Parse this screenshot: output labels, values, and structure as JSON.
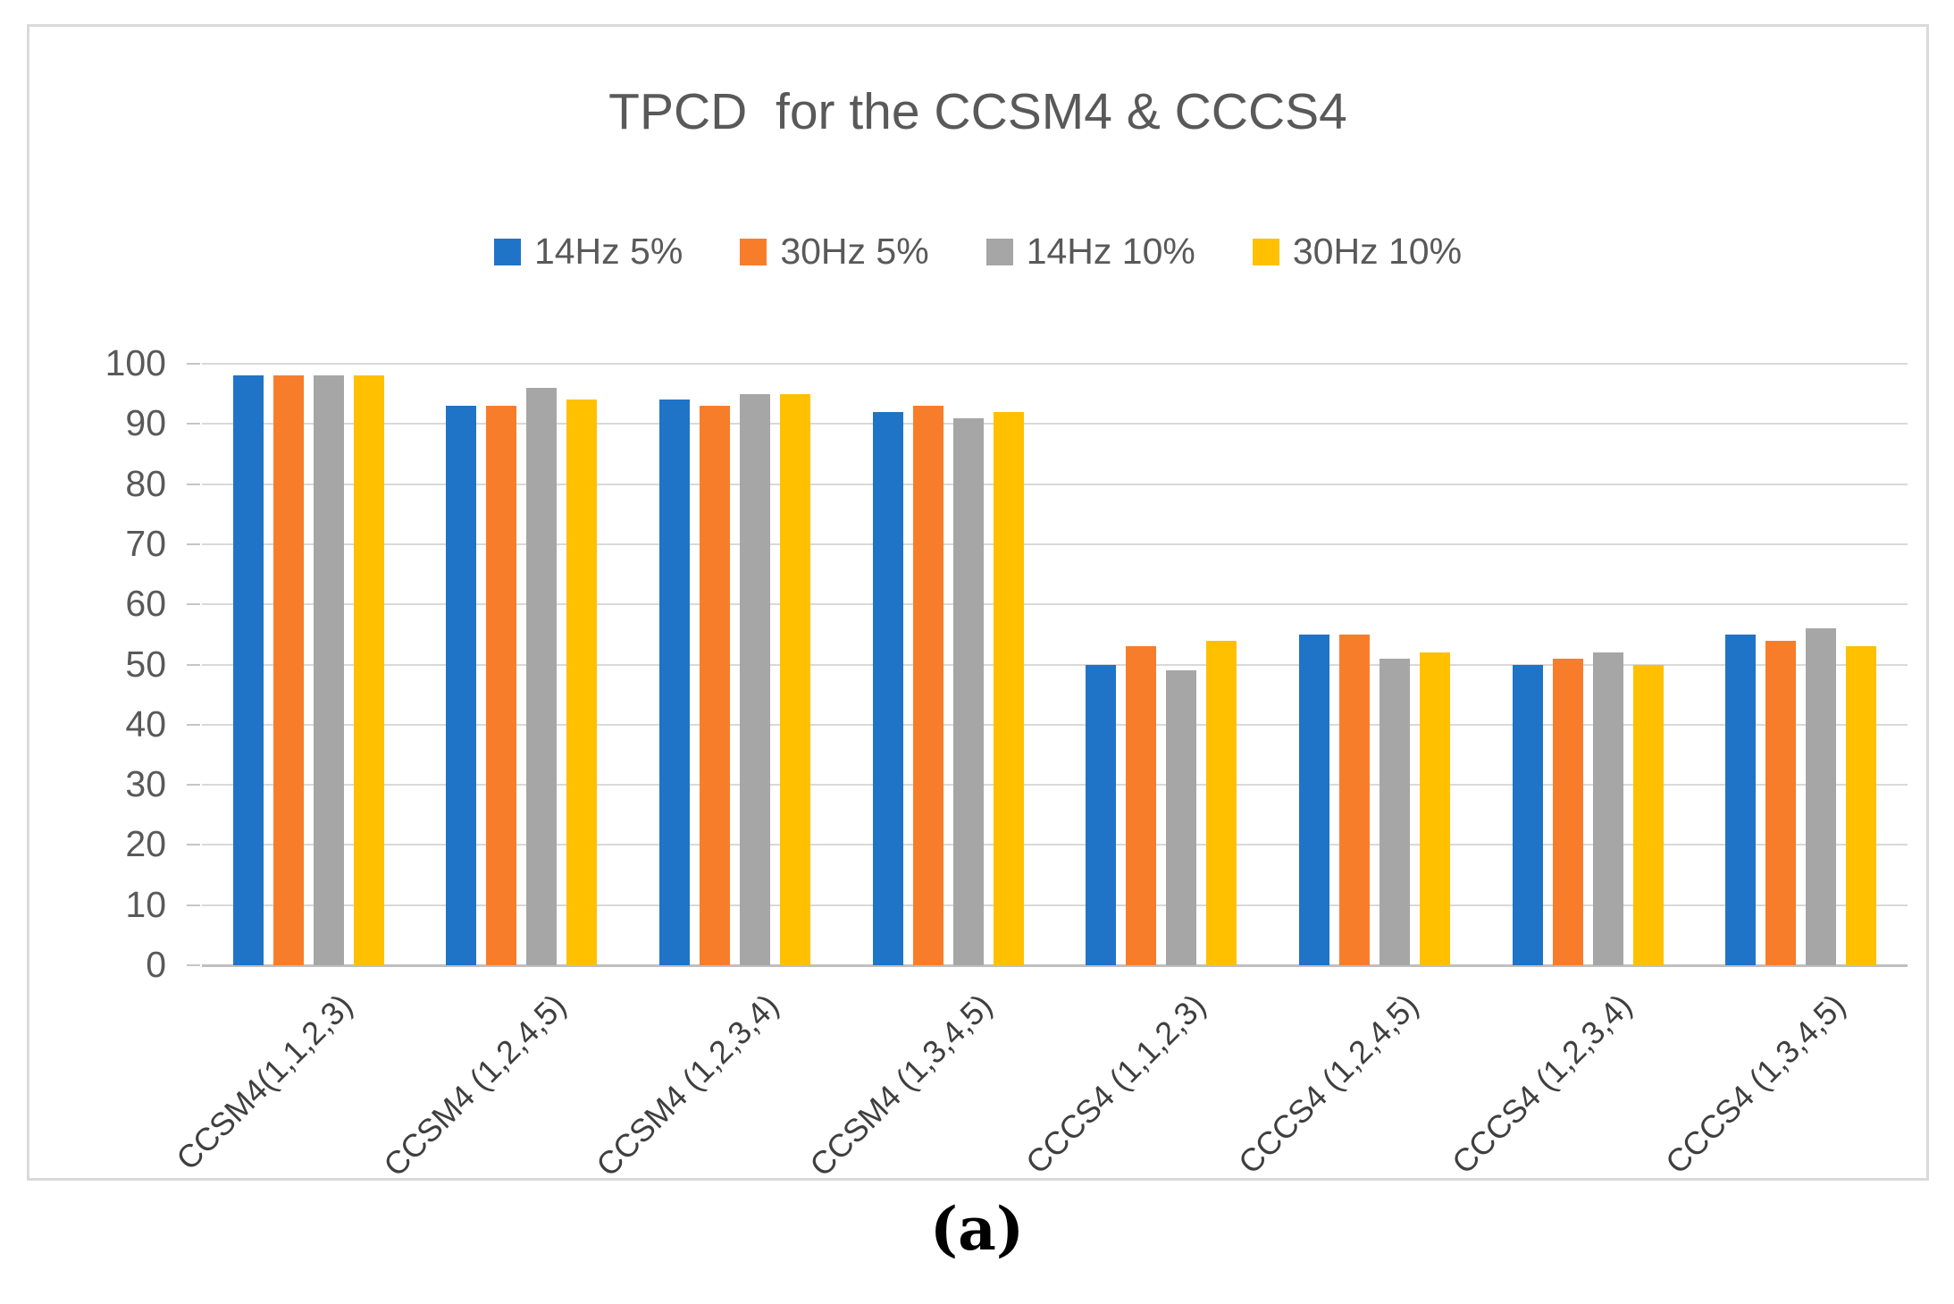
{
  "figure": {
    "title": "TPCD  for the CCSM4 & CCCS4",
    "caption": "(a)"
  },
  "chart_data": {
    "type": "bar",
    "title": "TPCD  for the CCSM4 & CCCS4",
    "categories": [
      "CCSM4(1,1,2,3)",
      "CCSM4 (1,2,4,5)",
      "CCSM4 (1,2,3,4)",
      "CCSM4 (1,3,4,5)",
      "CCCS4  (1,1,2,3)",
      "CCCS4 (1,2,4,5)",
      "CCCS4 (1,2,3,4)",
      "CCCS4 (1,3,4,5)"
    ],
    "series": [
      {
        "name": "14Hz 5%",
        "color": "#2074C7",
        "values": [
          98,
          93,
          94,
          92,
          50,
          55,
          50,
          55
        ]
      },
      {
        "name": "30Hz 5%",
        "color": "#F87D2B",
        "values": [
          98,
          93,
          93,
          93,
          53,
          55,
          51,
          54
        ]
      },
      {
        "name": "14Hz 10%",
        "color": "#A6A6A6",
        "values": [
          98,
          96,
          95,
          91,
          49,
          51,
          52,
          56
        ]
      },
      {
        "name": "30Hz 10%",
        "color": "#FFC000",
        "values": [
          98,
          94,
          95,
          92,
          54,
          52,
          50,
          53
        ]
      }
    ],
    "xlabel": "",
    "ylabel": "",
    "ylim": [
      0,
      100
    ],
    "yticks": [
      0,
      10,
      20,
      30,
      40,
      50,
      60,
      70,
      80,
      90,
      100
    ],
    "grid": true,
    "legend_position": "top"
  }
}
